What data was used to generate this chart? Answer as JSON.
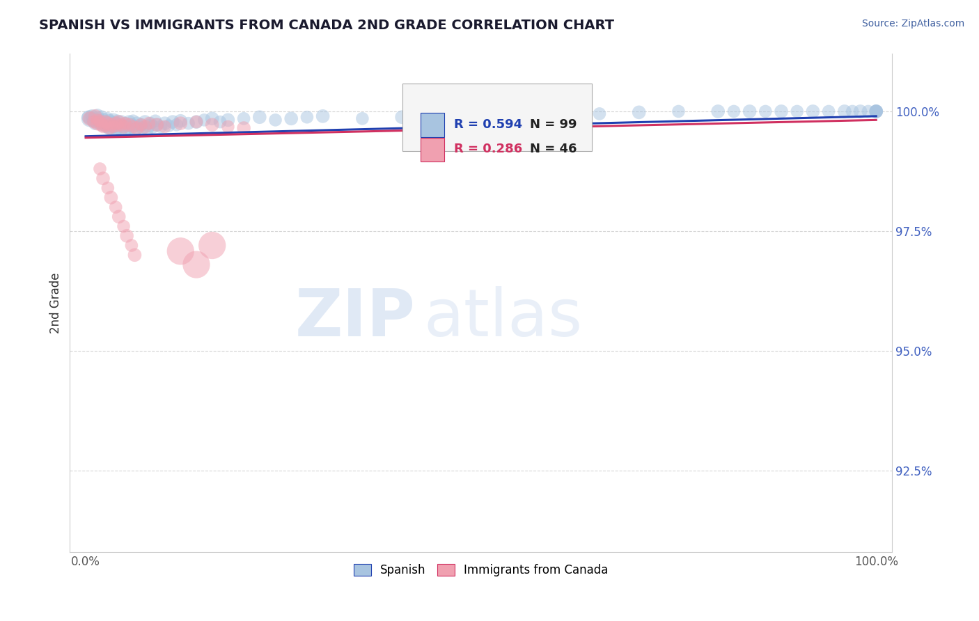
{
  "title": "SPANISH VS IMMIGRANTS FROM CANADA 2ND GRADE CORRELATION CHART",
  "source": "Source: ZipAtlas.com",
  "ylabel": "2nd Grade",
  "xlim": [
    -0.02,
    1.02
  ],
  "ylim": [
    0.908,
    1.012
  ],
  "yticks": [
    0.925,
    0.95,
    0.975,
    1.0
  ],
  "ytick_labels": [
    "92.5%",
    "95.0%",
    "97.5%",
    "100.0%"
  ],
  "xtick_labels": [
    "0.0%",
    "100.0%"
  ],
  "legend_spanish_label": "Spanish",
  "legend_canada_label": "Immigrants from Canada",
  "R_spanish": 0.594,
  "N_spanish": 99,
  "R_canada": 0.286,
  "N_canada": 46,
  "color_spanish": "#a8c4e0",
  "color_canada": "#f0a0b0",
  "line_color_spanish": "#2040b0",
  "line_color_canada": "#d03060",
  "background_color": "#ffffff",
  "grid_color": "#cccccc",
  "title_color": "#1a1a2e",
  "source_color": "#4060a0",
  "ytick_color": "#4060c0",
  "sp_x": [
    0.005,
    0.008,
    0.01,
    0.012,
    0.015,
    0.015,
    0.018,
    0.02,
    0.02,
    0.022,
    0.025,
    0.025,
    0.028,
    0.03,
    0.03,
    0.03,
    0.032,
    0.035,
    0.035,
    0.038,
    0.04,
    0.04,
    0.042,
    0.045,
    0.045,
    0.048,
    0.05,
    0.05,
    0.052,
    0.055,
    0.055,
    0.058,
    0.06,
    0.06,
    0.062,
    0.065,
    0.068,
    0.07,
    0.072,
    0.075,
    0.078,
    0.08,
    0.082,
    0.085,
    0.088,
    0.09,
    0.095,
    0.1,
    0.105,
    0.11,
    0.115,
    0.12,
    0.13,
    0.14,
    0.15,
    0.16,
    0.17,
    0.18,
    0.2,
    0.22,
    0.24,
    0.26,
    0.28,
    0.3,
    0.35,
    0.4,
    0.45,
    0.5,
    0.55,
    0.6,
    0.65,
    0.7,
    0.75,
    0.8,
    0.82,
    0.84,
    0.86,
    0.88,
    0.9,
    0.92,
    0.94,
    0.96,
    0.97,
    0.98,
    0.99,
    1.0,
    1.0,
    1.0,
    1.0,
    1.0,
    0.003,
    0.006,
    0.009,
    0.013,
    0.017,
    0.021,
    0.026,
    0.032,
    0.038
  ],
  "sp_y": [
    0.9985,
    0.999,
    0.998,
    0.9975,
    0.9992,
    0.9985,
    0.998,
    0.9988,
    0.9975,
    0.9982,
    0.9978,
    0.9972,
    0.9985,
    0.998,
    0.997,
    0.9965,
    0.9978,
    0.9982,
    0.9968,
    0.9975,
    0.998,
    0.9965,
    0.9972,
    0.9978,
    0.996,
    0.9968,
    0.9975,
    0.9962,
    0.997,
    0.9978,
    0.9965,
    0.9972,
    0.998,
    0.9968,
    0.996,
    0.9975,
    0.9968,
    0.9972,
    0.9965,
    0.9978,
    0.9962,
    0.997,
    0.9975,
    0.9968,
    0.998,
    0.9972,
    0.9968,
    0.9975,
    0.997,
    0.9978,
    0.9972,
    0.998,
    0.9975,
    0.9978,
    0.9982,
    0.9985,
    0.9978,
    0.9982,
    0.9985,
    0.9988,
    0.9982,
    0.9985,
    0.9988,
    0.999,
    0.9985,
    0.9988,
    0.999,
    0.9992,
    0.9992,
    0.9995,
    0.9995,
    0.9998,
    1.0,
    1.0,
    1.0,
    1.0,
    1.0,
    1.0,
    1.0,
    1.0,
    1.0,
    1.0,
    1.0,
    1.0,
    1.0,
    1.0,
    1.0,
    1.0,
    1.0,
    1.0,
    0.9988,
    0.9985,
    0.9982,
    0.9978,
    0.9975,
    0.9972,
    0.9968,
    0.9965,
    0.9962
  ],
  "sp_sizes": [
    300,
    200,
    180,
    200,
    180,
    220,
    180,
    200,
    180,
    200,
    180,
    200,
    180,
    200,
    180,
    220,
    180,
    200,
    180,
    200,
    180,
    200,
    180,
    200,
    180,
    200,
    180,
    200,
    180,
    200,
    180,
    200,
    180,
    200,
    180,
    200,
    180,
    200,
    180,
    200,
    180,
    200,
    180,
    200,
    180,
    200,
    180,
    200,
    180,
    200,
    180,
    200,
    180,
    200,
    180,
    200,
    180,
    200,
    180,
    200,
    180,
    200,
    180,
    200,
    180,
    200,
    180,
    200,
    180,
    200,
    180,
    200,
    180,
    200,
    180,
    200,
    180,
    200,
    180,
    200,
    180,
    200,
    180,
    200,
    180,
    200,
    180,
    200,
    180,
    200,
    180,
    200,
    180,
    200,
    180,
    200,
    180,
    200,
    180
  ],
  "ca_x": [
    0.005,
    0.01,
    0.012,
    0.015,
    0.015,
    0.018,
    0.02,
    0.022,
    0.025,
    0.025,
    0.028,
    0.03,
    0.032,
    0.035,
    0.038,
    0.04,
    0.042,
    0.045,
    0.048,
    0.05,
    0.055,
    0.06,
    0.065,
    0.07,
    0.075,
    0.08,
    0.09,
    0.1,
    0.12,
    0.14,
    0.16,
    0.18,
    0.2,
    0.12,
    0.14,
    0.16,
    0.018,
    0.022,
    0.028,
    0.032,
    0.038,
    0.042,
    0.048,
    0.052,
    0.058,
    0.062
  ],
  "ca_y": [
    0.9985,
    0.9978,
    0.999,
    0.9982,
    0.9975,
    0.998,
    0.9972,
    0.9968,
    0.9978,
    0.997,
    0.9975,
    0.9965,
    0.9972,
    0.9968,
    0.9975,
    0.997,
    0.9978,
    0.9972,
    0.9968,
    0.9975,
    0.9972,
    0.9968,
    0.9965,
    0.9972,
    0.9968,
    0.9975,
    0.9972,
    0.9968,
    0.9975,
    0.9978,
    0.9972,
    0.9968,
    0.9965,
    0.9708,
    0.968,
    0.972,
    0.988,
    0.986,
    0.984,
    0.982,
    0.98,
    0.978,
    0.976,
    0.974,
    0.972,
    0.97
  ],
  "ca_sizes": [
    220,
    180,
    200,
    180,
    220,
    180,
    200,
    180,
    200,
    180,
    200,
    180,
    200,
    180,
    200,
    180,
    200,
    180,
    200,
    180,
    200,
    180,
    200,
    180,
    200,
    180,
    200,
    180,
    200,
    180,
    200,
    180,
    200,
    800,
    800,
    800,
    180,
    200,
    180,
    200,
    180,
    200,
    180,
    200,
    180,
    200
  ],
  "sp_line_x": [
    0.0,
    1.0
  ],
  "sp_line_y": [
    0.9948,
    0.999
  ],
  "ca_line_x": [
    0.0,
    1.0
  ],
  "ca_line_y": [
    0.9945,
    0.9982
  ]
}
